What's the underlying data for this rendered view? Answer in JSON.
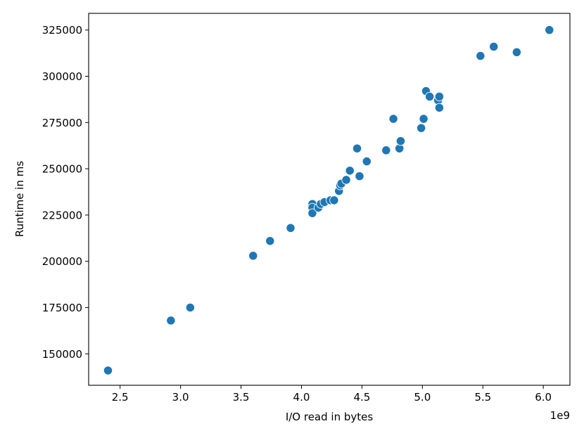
{
  "chart_data": {
    "type": "scatter",
    "xlabel": "I/O read in bytes",
    "ylabel": "Runtime in ms",
    "x_offset_label": "1e9",
    "xlim": [
      2.24,
      6.22
    ],
    "ylim": [
      133000,
      334000
    ],
    "x_ticks": [
      2.5,
      3.0,
      3.5,
      4.0,
      4.5,
      5.0,
      5.5,
      6.0
    ],
    "x_tick_labels": [
      "2.5",
      "3.0",
      "3.5",
      "4.0",
      "4.5",
      "5.0",
      "5.5",
      "6.0"
    ],
    "y_ticks": [
      150000,
      175000,
      200000,
      225000,
      250000,
      275000,
      300000,
      325000
    ],
    "y_tick_labels": [
      "150000",
      "175000",
      "200000",
      "225000",
      "250000",
      "275000",
      "300000",
      "325000"
    ],
    "grid": false,
    "marker_color": "#1f77b4",
    "points": [
      [
        2.4,
        141000
      ],
      [
        2.92,
        168000
      ],
      [
        3.08,
        175000
      ],
      [
        3.6,
        203000
      ],
      [
        3.74,
        211000
      ],
      [
        3.91,
        218000
      ],
      [
        4.09,
        231000
      ],
      [
        4.09,
        229000
      ],
      [
        4.09,
        226000
      ],
      [
        4.14,
        229000
      ],
      [
        4.16,
        231000
      ],
      [
        4.19,
        232000
      ],
      [
        4.24,
        233000
      ],
      [
        4.27,
        233000
      ],
      [
        4.31,
        238000
      ],
      [
        4.32,
        241000
      ],
      [
        4.33,
        242000
      ],
      [
        4.37,
        244000
      ],
      [
        4.4,
        249000
      ],
      [
        4.46,
        261000
      ],
      [
        4.48,
        246000
      ],
      [
        4.54,
        254000
      ],
      [
        4.7,
        260000
      ],
      [
        4.76,
        277000
      ],
      [
        4.81,
        261000
      ],
      [
        4.82,
        265000
      ],
      [
        4.99,
        272000
      ],
      [
        5.01,
        277000
      ],
      [
        5.03,
        292000
      ],
      [
        5.06,
        289000
      ],
      [
        5.13,
        287000
      ],
      [
        5.14,
        289000
      ],
      [
        5.14,
        283000
      ],
      [
        5.48,
        311000
      ],
      [
        5.59,
        316000
      ],
      [
        5.78,
        313000
      ],
      [
        6.05,
        325000
      ]
    ]
  }
}
